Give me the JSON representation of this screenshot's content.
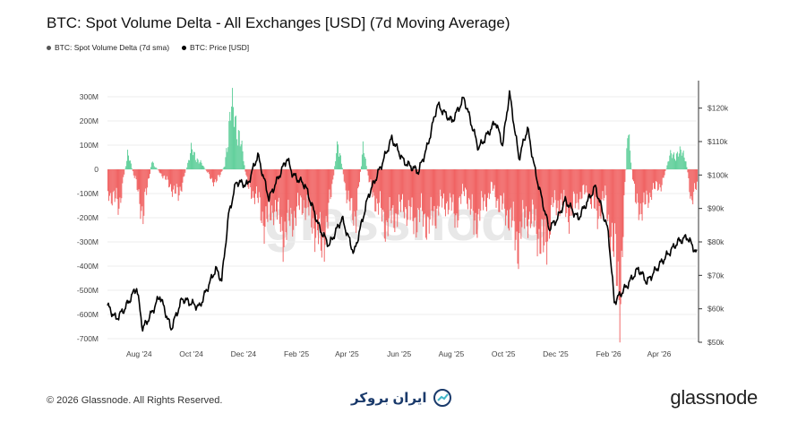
{
  "header": {
    "title": "BTC: Spot Volume Delta - All Exchanges [USD] (7d Moving Average)"
  },
  "legend": [
    {
      "label": "BTC: Spot Volume Delta (7d sma)",
      "color": "#555555"
    },
    {
      "label": "BTC: Price [USD]",
      "color": "#000000"
    }
  ],
  "footer": {
    "copyright": "© 2026 Glassnode. All Rights Reserved.",
    "brand": "glassnode",
    "partner": "ایران بروکر"
  },
  "watermark": "glassnode",
  "colors": {
    "positive": "#5fcf9a",
    "negative": "#f06262",
    "price": "#000000"
  },
  "chart_data": {
    "type": "bar+line",
    "x_ticks": [
      "Aug '24",
      "Oct '24",
      "Dec '24",
      "Feb '25",
      "Apr '25",
      "Jun '25",
      "Aug '25",
      "Oct '25",
      "Dec '25",
      "Feb '26",
      "Apr '26"
    ],
    "y_left": {
      "range": [
        -700,
        300
      ],
      "ticks": [
        "300M",
        "200M",
        "100M",
        "0",
        "-100M",
        "-200M",
        "-300M",
        "-400M",
        "-500M",
        "-600M",
        "-700M"
      ]
    },
    "y_right": {
      "range": [
        50000,
        125000
      ],
      "ticks": [
        "$120k",
        "$110k",
        "$100k",
        "$90k",
        "$80k",
        "$70k",
        "$60k",
        "$50k"
      ]
    },
    "price_points": [
      [
        "2024-06-25",
        61000
      ],
      [
        "2024-07-05",
        57000
      ],
      [
        "2024-07-15",
        60000
      ],
      [
        "2024-07-29",
        66500
      ],
      [
        "2024-08-05",
        54000
      ],
      [
        "2024-08-15",
        58500
      ],
      [
        "2024-08-25",
        64000
      ],
      [
        "2024-09-07",
        54000
      ],
      [
        "2024-09-20",
        63000
      ],
      [
        "2024-10-10",
        60500
      ],
      [
        "2024-10-29",
        72000
      ],
      [
        "2024-11-05",
        68500
      ],
      [
        "2024-11-13",
        88000
      ],
      [
        "2024-11-22",
        98000
      ],
      [
        "2024-12-05",
        97000
      ],
      [
        "2024-12-17",
        106000
      ],
      [
        "2024-12-30",
        93000
      ],
      [
        "2025-01-20",
        105000
      ],
      [
        "2025-01-27",
        100000
      ],
      [
        "2025-02-10",
        97000
      ],
      [
        "2025-02-27",
        84000
      ],
      [
        "2025-03-10",
        79000
      ],
      [
        "2025-03-25",
        87000
      ],
      [
        "2025-04-08",
        76500
      ],
      [
        "2025-04-25",
        94000
      ],
      [
        "2025-05-10",
        103000
      ],
      [
        "2025-05-22",
        111000
      ],
      [
        "2025-06-05",
        104000
      ],
      [
        "2025-06-22",
        101000
      ],
      [
        "2025-07-03",
        109000
      ],
      [
        "2025-07-14",
        121000
      ],
      [
        "2025-07-31",
        116000
      ],
      [
        "2025-08-14",
        123000
      ],
      [
        "2025-08-31",
        108000
      ],
      [
        "2025-09-20",
        116000
      ],
      [
        "2025-09-28",
        109000
      ],
      [
        "2025-10-06",
        124500
      ],
      [
        "2025-10-17",
        105000
      ],
      [
        "2025-10-27",
        114000
      ],
      [
        "2025-11-05",
        101000
      ],
      [
        "2025-11-21",
        84000
      ],
      [
        "2025-12-01",
        87000
      ],
      [
        "2025-12-10",
        92500
      ],
      [
        "2025-12-25",
        87000
      ],
      [
        "2026-01-14",
        96500
      ],
      [
        "2026-01-29",
        83000
      ],
      [
        "2026-02-05",
        62000
      ],
      [
        "2026-02-20",
        67000
      ],
      [
        "2026-03-05",
        72000
      ],
      [
        "2026-03-15",
        68000
      ],
      [
        "2026-04-01",
        74000
      ],
      [
        "2026-04-20",
        80000
      ],
      [
        "2026-05-01",
        81500
      ],
      [
        "2026-05-12",
        76500
      ]
    ],
    "delta_points": [
      [
        "2024-06-25",
        -120
      ],
      [
        "2024-07-08",
        -200
      ],
      [
        "2024-07-18",
        90
      ],
      [
        "2024-07-28",
        -80
      ],
      [
        "2024-08-05",
        -250
      ],
      [
        "2024-08-15",
        40
      ],
      [
        "2024-09-01",
        -60
      ],
      [
        "2024-09-15",
        -150
      ],
      [
        "2024-09-30",
        100
      ],
      [
        "2024-10-12",
        30
      ],
      [
        "2024-10-28",
        -80
      ],
      [
        "2024-11-08",
        20
      ],
      [
        "2024-11-15",
        330
      ],
      [
        "2024-11-25",
        200
      ],
      [
        "2024-12-05",
        -100
      ],
      [
        "2024-12-15",
        -150
      ],
      [
        "2024-12-25",
        -300
      ],
      [
        "2025-01-05",
        -200
      ],
      [
        "2025-01-15",
        -350
      ],
      [
        "2025-01-28",
        -250
      ],
      [
        "2025-02-08",
        -180
      ],
      [
        "2025-02-20",
        -300
      ],
      [
        "2025-02-28",
        -420
      ],
      [
        "2025-03-08",
        -280
      ],
      [
        "2025-03-20",
        160
      ],
      [
        "2025-04-01",
        -200
      ],
      [
        "2025-04-10",
        -250
      ],
      [
        "2025-04-18",
        120
      ],
      [
        "2025-04-26",
        -90
      ],
      [
        "2025-05-05",
        -200
      ],
      [
        "2025-05-15",
        -300
      ],
      [
        "2025-05-25",
        -250
      ],
      [
        "2025-06-05",
        -200
      ],
      [
        "2025-06-15",
        -280
      ],
      [
        "2025-06-25",
        -250
      ],
      [
        "2025-07-05",
        -300
      ],
      [
        "2025-07-15",
        -200
      ],
      [
        "2025-07-25",
        -180
      ],
      [
        "2025-08-05",
        -250
      ],
      [
        "2025-08-15",
        -100
      ],
      [
        "2025-08-25",
        -300
      ],
      [
        "2025-09-05",
        -200
      ],
      [
        "2025-09-15",
        -100
      ],
      [
        "2025-09-25",
        -200
      ],
      [
        "2025-10-05",
        -250
      ],
      [
        "2025-10-15",
        -400
      ],
      [
        "2025-10-25",
        -250
      ],
      [
        "2025-11-05",
        -300
      ],
      [
        "2025-11-15",
        -450
      ],
      [
        "2025-11-25",
        -200
      ],
      [
        "2025-12-05",
        -180
      ],
      [
        "2025-12-15",
        -250
      ],
      [
        "2025-12-25",
        -150
      ],
      [
        "2026-01-05",
        -120
      ],
      [
        "2026-01-15",
        -250
      ],
      [
        "2026-01-25",
        -150
      ],
      [
        "2026-02-05",
        -500
      ],
      [
        "2026-02-12",
        -670
      ],
      [
        "2026-02-20",
        220
      ],
      [
        "2026-03-01",
        -180
      ],
      [
        "2026-03-10",
        -220
      ],
      [
        "2026-03-20",
        -120
      ],
      [
        "2026-04-01",
        -80
      ],
      [
        "2026-04-10",
        70
      ],
      [
        "2026-04-20",
        90
      ],
      [
        "2026-04-28",
        80
      ],
      [
        "2026-05-05",
        -160
      ],
      [
        "2026-05-12",
        -100
      ]
    ]
  }
}
